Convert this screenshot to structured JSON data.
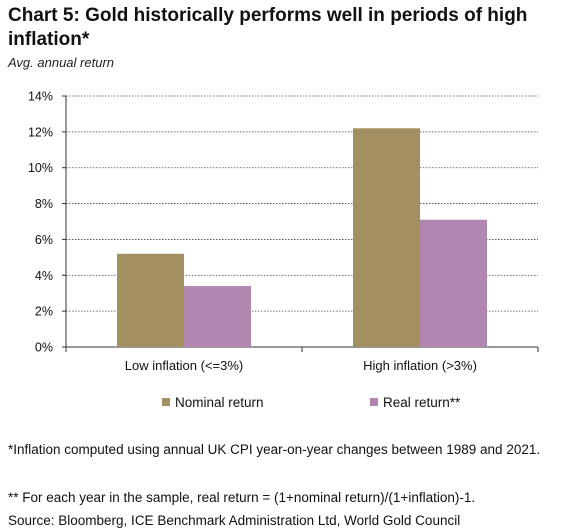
{
  "header": {
    "title": "Chart 5: Gold historically performs well in periods of high inflation*",
    "subtitle": "Avg. annual return"
  },
  "colors": {
    "nominal": "#a39060",
    "real": "#b186b0"
  },
  "chart_data": {
    "type": "bar",
    "categories": [
      "Low inflation (<=3%)",
      "High inflation (>3%)"
    ],
    "series": [
      {
        "name": "Nominal return",
        "values": [
          5.2,
          12.2
        ]
      },
      {
        "name": "Real return**",
        "values": [
          3.4,
          7.1
        ]
      }
    ],
    "ylim": [
      0,
      14
    ],
    "yticks": [
      0,
      2,
      4,
      6,
      8,
      10,
      12,
      14
    ],
    "ytick_labels": [
      "0%",
      "2%",
      "4%",
      "6%",
      "8%",
      "10%",
      "12%",
      "14%"
    ],
    "grid": true,
    "legend_position": "bottom"
  },
  "footnotes": {
    "note1": "*Inflation computed using annual UK CPI year-on-year changes between 1989 and 2021.",
    "note2": "** For each year in the sample, real return = (1+nominal return)/(1+inflation)-1.",
    "source": "Source: Bloomberg, ICE Benchmark Administration Ltd, World Gold Council"
  }
}
